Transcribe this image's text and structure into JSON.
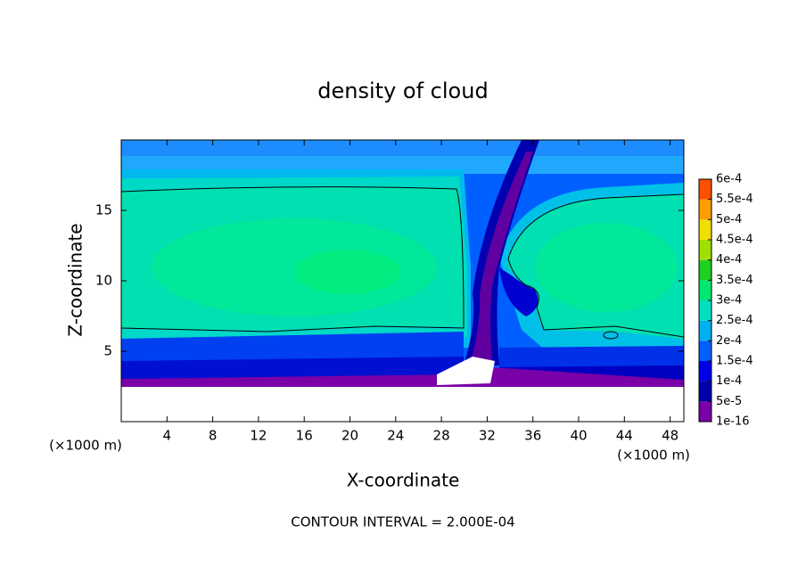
{
  "chart_data": {
    "type": "contour",
    "title": "density of cloud",
    "x_label": "X-coordinate",
    "y_label": "Z-coordinate",
    "x_unit": "(×1000 m)",
    "annotation": "CONTOUR INTERVAL = 2.000E-04",
    "xlim": [
      0,
      49.2
    ],
    "xticks": [
      4,
      8,
      12,
      16,
      20,
      24,
      28,
      32,
      36,
      40,
      44,
      48
    ],
    "ylim": [
      0,
      20
    ],
    "yticks": [
      5,
      10,
      15
    ],
    "colorbar": {
      "levels": [
        {
          "value": 1e-16,
          "label": "1e-16"
        },
        {
          "value": 5e-05,
          "label": "5e-5"
        },
        {
          "value": 0.0001,
          "label": "1e-4"
        },
        {
          "value": 0.00015,
          "label": "1.5e-4"
        },
        {
          "value": 0.0002,
          "label": "2e-4"
        },
        {
          "value": 0.00025,
          "label": "2.5e-4"
        },
        {
          "value": 0.0003,
          "label": "3e-4"
        },
        {
          "value": 0.00035,
          "label": "3.5e-4"
        },
        {
          "value": 0.0004,
          "label": "4e-4"
        },
        {
          "value": 0.00045,
          "label": "4.5e-4"
        },
        {
          "value": 0.0005,
          "label": "5e-4"
        },
        {
          "value": 0.00055,
          "label": "5.5e-4"
        },
        {
          "value": 0.0006,
          "label": "6e-4"
        }
      ],
      "colors": [
        "#7a00a8",
        "#0000a8",
        "#0000e8",
        "#0060ff",
        "#00b0f0",
        "#00e0c0",
        "#00e870",
        "#20d020",
        "#a0e000",
        "#f0e000",
        "#ffa000",
        "#ff5000",
        "#ff1010"
      ]
    }
  }
}
